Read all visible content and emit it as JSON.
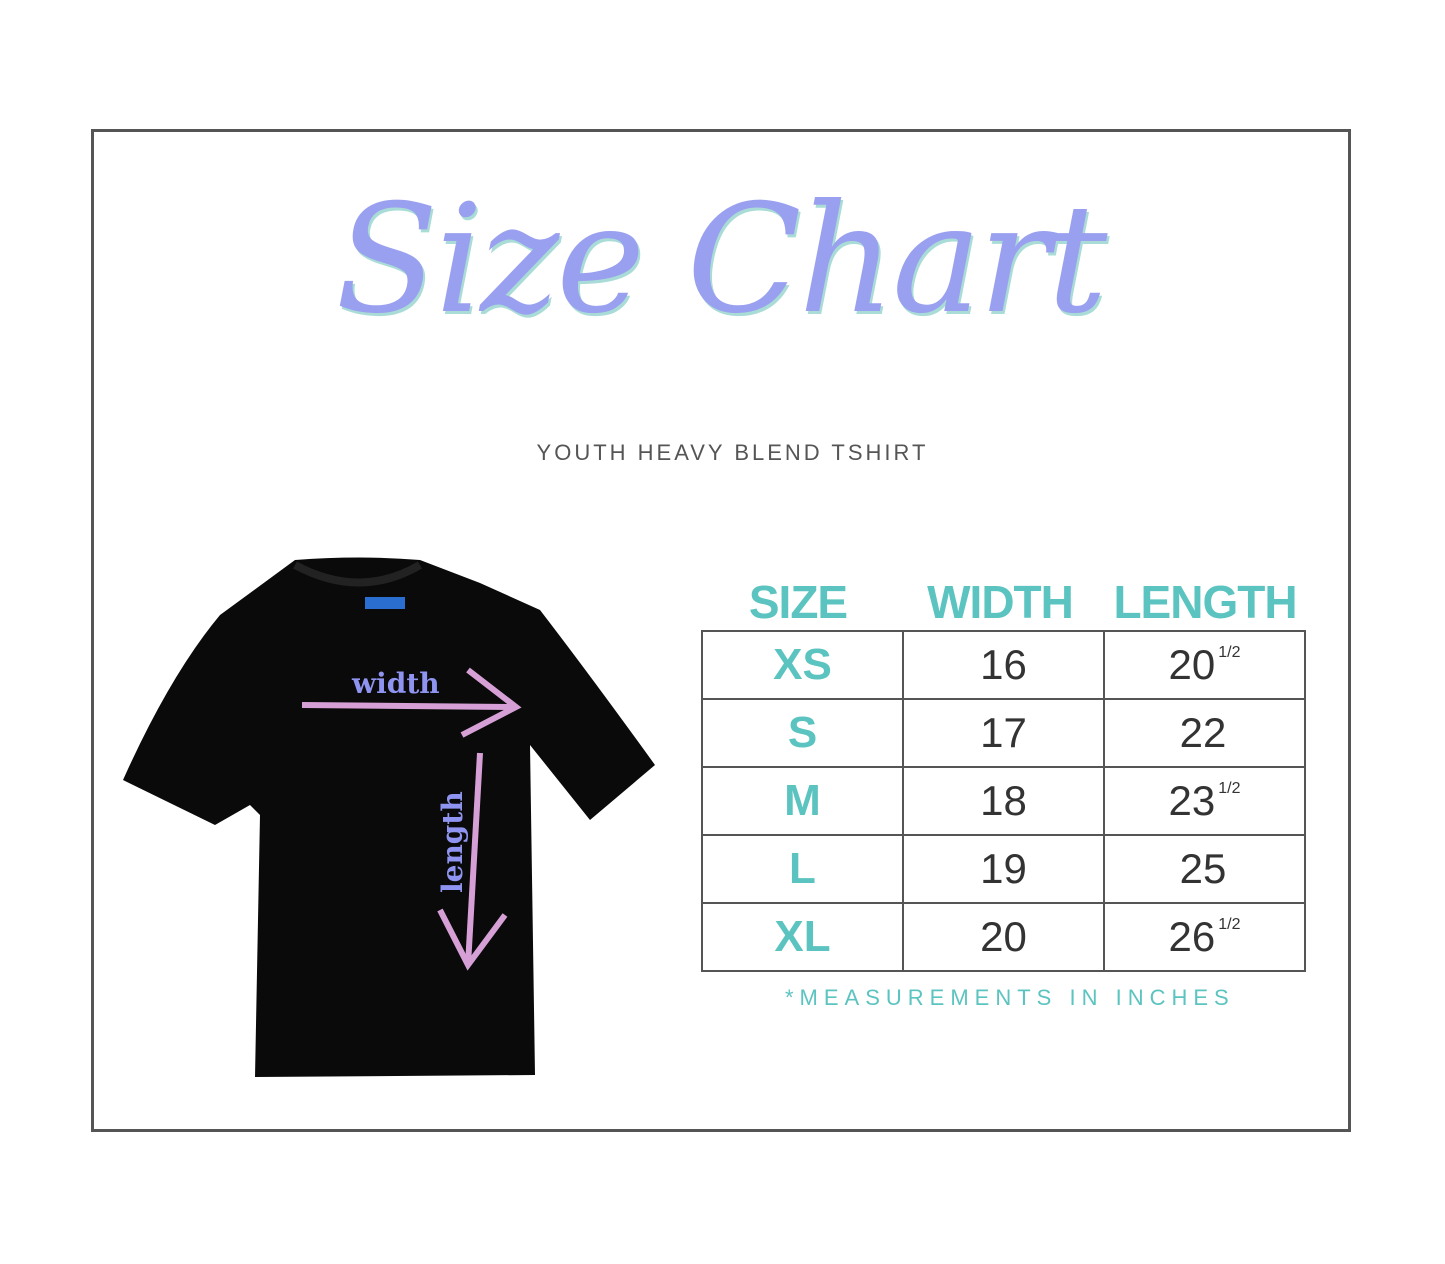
{
  "title": "Size Chart",
  "subtitle": "YOUTH HEAVY BLEND TSHIRT",
  "diagram": {
    "width_label": "width",
    "length_label": "length",
    "shirt_color": "#000000",
    "arrow_color": "#d6a0d6",
    "label_color": "#8f94f0"
  },
  "table": {
    "headers": [
      "SIZE",
      "WIDTH",
      "LENGTH"
    ],
    "rows": [
      {
        "size": "XS",
        "width": "16",
        "length": "20",
        "length_fraction": "1/2"
      },
      {
        "size": "S",
        "width": "17",
        "length": "22",
        "length_fraction": ""
      },
      {
        "size": "M",
        "width": "18",
        "length": "23",
        "length_fraction": "1/2"
      },
      {
        "size": "L",
        "width": "19",
        "length": "25",
        "length_fraction": ""
      },
      {
        "size": "XL",
        "width": "20",
        "length": "26",
        "length_fraction": "1/2"
      }
    ]
  },
  "note": "*MEASUREMENTS IN INCHES",
  "colors": {
    "title": "#9aa0f0",
    "accent": "#5cc4c0"
  }
}
